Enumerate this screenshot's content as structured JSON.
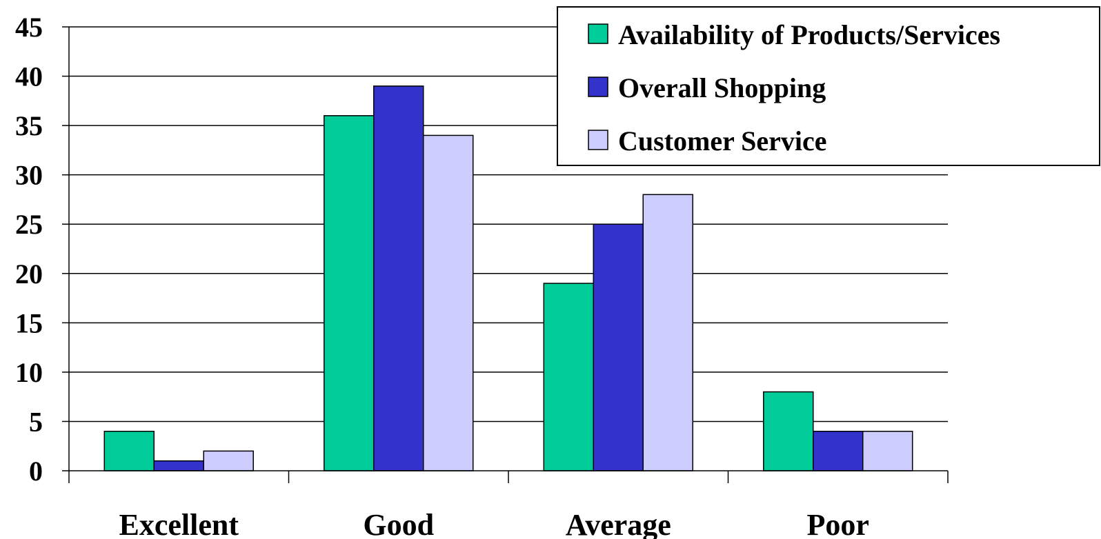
{
  "chart_data": {
    "type": "bar",
    "title": "",
    "xlabel": "",
    "ylabel": "",
    "categories": [
      "Excellent",
      "Good",
      "Average",
      "Poor"
    ],
    "series": [
      {
        "name": "Availability of Products/Services",
        "color": "#00CC99",
        "values": [
          4,
          36,
          19,
          8
        ]
      },
      {
        "name": "Overall Shopping",
        "color": "#3333CC",
        "values": [
          1,
          39,
          25,
          4
        ]
      },
      {
        "name": "Customer Service",
        "color": "#CCCCFF",
        "values": [
          2,
          34,
          28,
          4
        ]
      }
    ],
    "ylim": [
      0,
      45
    ],
    "yticks": [
      "0",
      "5",
      "10",
      "15",
      "20",
      "25",
      "30",
      "35",
      "40",
      "45"
    ],
    "grid": true,
    "legend_position": "top-right"
  }
}
